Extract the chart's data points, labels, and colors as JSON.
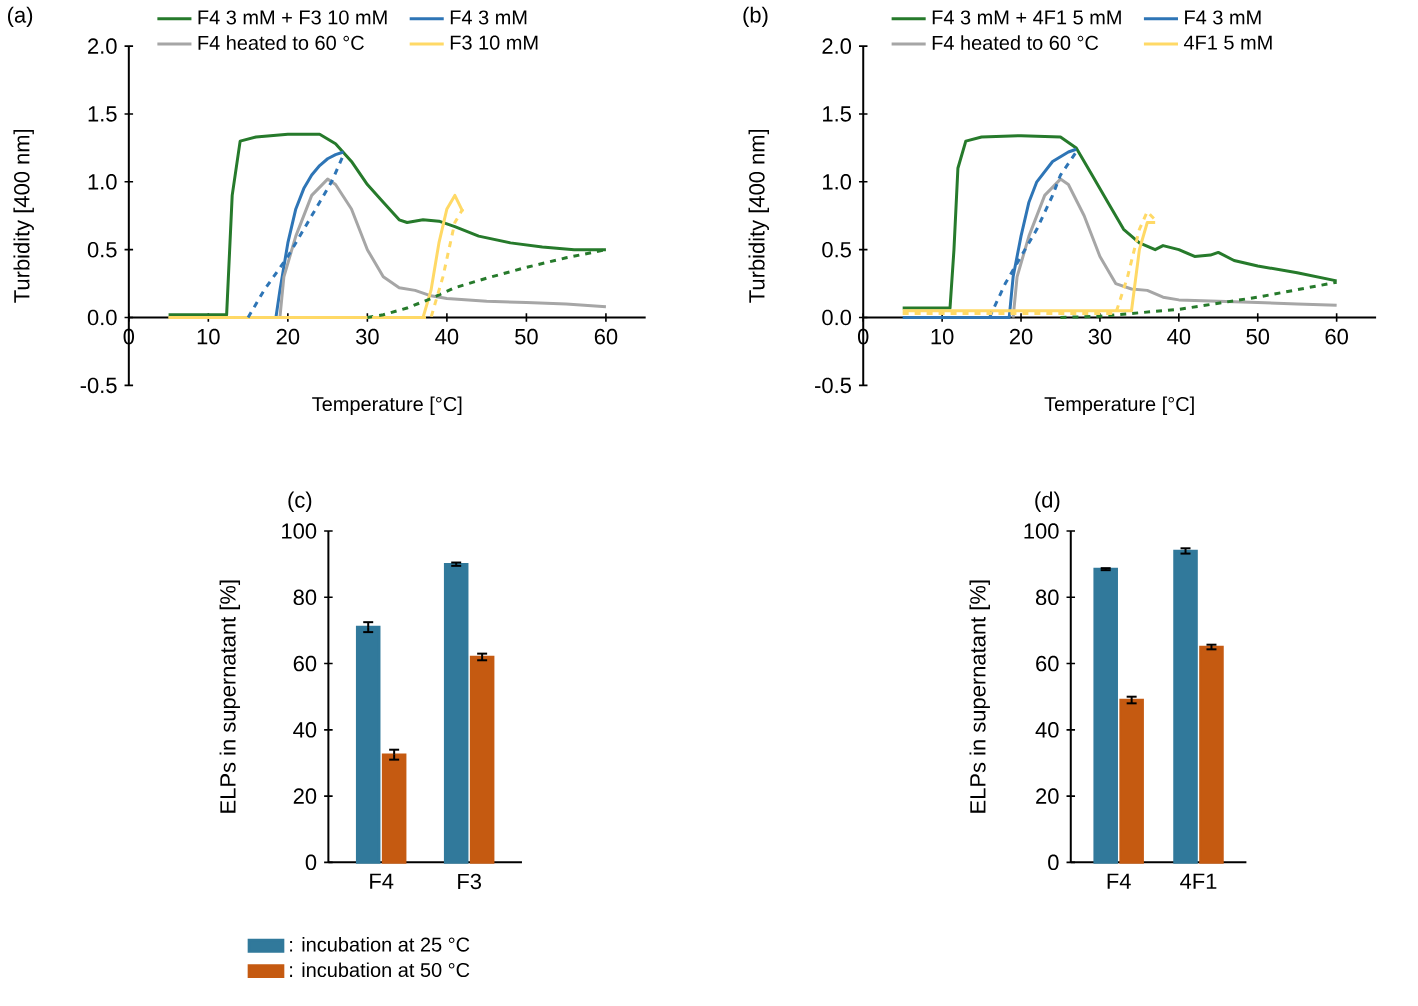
{
  "chart_data": [
    {
      "type": "line",
      "title": "(a)",
      "xlabel": "Temperature [°C]",
      "ylabel": "Turbidity [400 nm]",
      "xlim": [
        0,
        65
      ],
      "ylim": [
        -0.5,
        2
      ],
      "xticks": [
        0,
        10,
        20,
        30,
        40,
        50,
        60
      ],
      "yticks": [
        {
          "value": -0.5,
          "label": "-0.5"
        },
        {
          "value": 0,
          "label": "0.0"
        },
        {
          "value": 0.5,
          "label": "0.5"
        },
        {
          "value": 1,
          "label": "1.0"
        },
        {
          "value": 1.5,
          "label": "1.5"
        },
        {
          "value": 2,
          "label": "2.0"
        }
      ],
      "legend": "top",
      "series": [
        {
          "name": "F4 3 mM + F3 10 mM",
          "color": "#267a2b",
          "x": [
            5,
            12.3,
            13,
            14,
            16,
            20,
            24,
            26,
            28,
            30,
            32,
            34,
            35,
            37,
            39,
            41,
            44,
            48,
            52,
            56,
            60
          ],
          "values": [
            0.02,
            0.02,
            0.9,
            1.3,
            1.33,
            1.35,
            1.35,
            1.28,
            1.15,
            0.98,
            0.85,
            0.72,
            0.7,
            0.72,
            0.71,
            0.67,
            0.6,
            0.55,
            0.52,
            0.5,
            0.5
          ]
        },
        {
          "name": "F4 3 mM",
          "color": "#2e75b6",
          "x": [
            5,
            18.5,
            19,
            20,
            21,
            22,
            23,
            24,
            25,
            26,
            27
          ],
          "values": [
            0,
            0,
            0.2,
            0.55,
            0.8,
            0.95,
            1.05,
            1.12,
            1.17,
            1.2,
            1.22
          ]
        },
        {
          "name": "F4 heated to 60 °C",
          "color": "#a6a6a6",
          "x": [
            19,
            19.5,
            21,
            23,
            25,
            26,
            28,
            30,
            32,
            34,
            36,
            38,
            40,
            45,
            50,
            55,
            60
          ],
          "values": [
            0,
            0.3,
            0.6,
            0.9,
            1.02,
            0.98,
            0.8,
            0.5,
            0.3,
            0.22,
            0.2,
            0.16,
            0.14,
            0.12,
            0.11,
            0.1,
            0.08
          ]
        },
        {
          "name": "F3 10 mM",
          "color": "#ffd966",
          "x": [
            5,
            37,
            38,
            39,
            40,
            41,
            42
          ],
          "values": [
            0,
            0,
            0.2,
            0.55,
            0.8,
            0.9,
            0.78
          ]
        },
        {
          "color": "#267a2b",
          "line_style": "dashed",
          "x": [
            30,
            32,
            35,
            38,
            41,
            45,
            50,
            55,
            60
          ],
          "values": [
            0,
            0.02,
            0.07,
            0.14,
            0.22,
            0.29,
            0.37,
            0.44,
            0.5
          ]
        },
        {
          "color": "#2e75b6",
          "line_style": "dashed",
          "x": [
            15,
            17,
            20,
            22,
            24,
            25.5,
            27
          ],
          "values": [
            0,
            0.2,
            0.45,
            0.65,
            0.85,
            1.0,
            1.2
          ]
        },
        {
          "color": "#ffd966",
          "line_style": "dashed",
          "x": [
            5,
            38,
            39.5,
            41,
            42
          ],
          "values": [
            0,
            0,
            0.3,
            0.7,
            0.8
          ]
        }
      ]
    },
    {
      "type": "line",
      "title": "(b)",
      "xlabel": "Temperature [°C]",
      "ylabel": "Turbidity [400 nm]",
      "xlim": [
        0,
        65
      ],
      "ylim": [
        -0.5,
        2
      ],
      "xticks": [
        0,
        10,
        20,
        30,
        40,
        50,
        60
      ],
      "yticks": [
        {
          "value": -0.5,
          "label": "-0.5"
        },
        {
          "value": 0,
          "label": "0.0"
        },
        {
          "value": 0.5,
          "label": "0.5"
        },
        {
          "value": 1,
          "label": "1.0"
        },
        {
          "value": 1.5,
          "label": "1.5"
        },
        {
          "value": 2,
          "label": "2.0"
        }
      ],
      "legend": "top",
      "series": [
        {
          "name": "F4 3 mM + 4F1 5 mM",
          "color": "#267a2b",
          "x": [
            5,
            11,
            11.5,
            12,
            13,
            15,
            20,
            25,
            27,
            29,
            31,
            33,
            35,
            37,
            38,
            40,
            42,
            44,
            45,
            47,
            50,
            55,
            60
          ],
          "values": [
            0.07,
            0.07,
            0.5,
            1.1,
            1.3,
            1.33,
            1.34,
            1.33,
            1.25,
            1.05,
            0.85,
            0.65,
            0.55,
            0.5,
            0.53,
            0.5,
            0.45,
            0.46,
            0.48,
            0.42,
            0.38,
            0.33,
            0.27
          ]
        },
        {
          "name": "F4 3 mM",
          "color": "#2e75b6",
          "x": [
            5,
            18.5,
            19,
            20,
            21,
            22,
            24,
            26,
            27
          ],
          "values": [
            0,
            0,
            0.3,
            0.6,
            0.85,
            1.0,
            1.15,
            1.22,
            1.24
          ]
        },
        {
          "name": "F4 heated to 60 °C",
          "color": "#a6a6a6",
          "x": [
            19,
            19.5,
            21,
            23,
            25,
            26,
            28,
            30,
            32,
            34,
            36,
            38,
            40,
            45,
            50,
            55,
            60
          ],
          "values": [
            0,
            0.3,
            0.6,
            0.9,
            1.02,
            0.98,
            0.75,
            0.45,
            0.25,
            0.21,
            0.2,
            0.15,
            0.13,
            0.12,
            0.11,
            0.1,
            0.09
          ]
        },
        {
          "name": "4F1 5 mM",
          "color": "#ffd966",
          "x": [
            5,
            34,
            35,
            36,
            37
          ],
          "values": [
            0.05,
            0.05,
            0.5,
            0.7,
            0.7
          ]
        },
        {
          "color": "#267a2b",
          "line_style": "dashed",
          "x": [
            25,
            30,
            40,
            50,
            60
          ],
          "values": [
            0,
            0.01,
            0.06,
            0.15,
            0.26
          ]
        },
        {
          "color": "#2e75b6",
          "line_style": "dashed",
          "x": [
            16,
            18,
            20,
            22,
            24,
            25,
            27
          ],
          "values": [
            0,
            0.25,
            0.45,
            0.65,
            0.9,
            1.05,
            1.22
          ]
        },
        {
          "color": "#ffd966",
          "line_style": "dashed",
          "x": [
            5,
            32,
            33.5,
            35,
            36,
            37
          ],
          "values": [
            0.03,
            0.03,
            0.3,
            0.65,
            0.78,
            0.72
          ]
        }
      ]
    },
    {
      "type": "bar",
      "title": "(c)",
      "ylabel": "ELPs in supernatant [%]",
      "categories": [
        "F4",
        "F3"
      ],
      "ylim": [
        0,
        100
      ],
      "yticks": [
        0,
        20,
        40,
        60,
        80,
        100
      ],
      "legend": "bottom",
      "series": [
        {
          "name": ": incubation at 25 °C",
          "color": "#31799b",
          "values": [
            71,
            90
          ],
          "errors": [
            1.5,
            0.5
          ]
        },
        {
          "name": ": incubation at 50 °C",
          "color": "#c55a11",
          "values": [
            32.5,
            62
          ],
          "errors": [
            1.5,
            1
          ]
        }
      ]
    },
    {
      "type": "bar",
      "title": "(d)",
      "ylabel": "ELPs in supernatant [%]",
      "categories": [
        "F4",
        "4F1"
      ],
      "ylim": [
        0,
        100
      ],
      "yticks": [
        0,
        20,
        40,
        60,
        80,
        100
      ],
      "series": [
        {
          "color": "#31799b",
          "values": [
            88.5,
            94
          ],
          "errors": [
            0.3,
            0.8
          ]
        },
        {
          "color": "#c55a11",
          "values": [
            49,
            65
          ],
          "errors": [
            1,
            0.7
          ]
        }
      ]
    }
  ]
}
